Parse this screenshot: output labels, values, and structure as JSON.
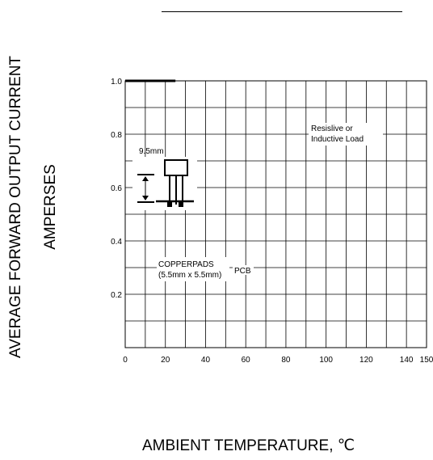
{
  "chart_data": {
    "type": "line",
    "title": "",
    "xlabel": "AMBIENT  TEMPERATURE,  ℃",
    "ylabel": [
      "AVERAGE FORWARD OUTPUT CURRENT",
      "AMPERSES"
    ],
    "xlim": [
      0,
      150
    ],
    "ylim": [
      0,
      1.0
    ],
    "x_ticks": [
      0,
      20,
      40,
      60,
      80,
      100,
      120,
      140,
      150
    ],
    "x_tick_labels": [
      "0",
      "20",
      "40",
      "60",
      "80",
      "100",
      "120",
      "140",
      "150"
    ],
    "y_ticks": [
      0.2,
      0.4,
      0.6,
      0.8,
      1.0
    ],
    "y_tick_labels": [
      "0.2",
      "0.4",
      "0.6",
      "0.8",
      "1.0"
    ],
    "grid": true,
    "series": [
      {
        "x": [
          0,
          25
        ],
        "y": [
          1.0,
          1.0
        ]
      }
    ],
    "annotations": {
      "load_line1": "Resislive or",
      "load_line2": "Inductive Load",
      "dim_label": "9.5mm",
      "pads_line1": "COPPERPADS",
      "pads_line2": "(5.5mm x 5.5mm)",
      "pcb_label": "PCB"
    },
    "line_color": "#000000"
  }
}
